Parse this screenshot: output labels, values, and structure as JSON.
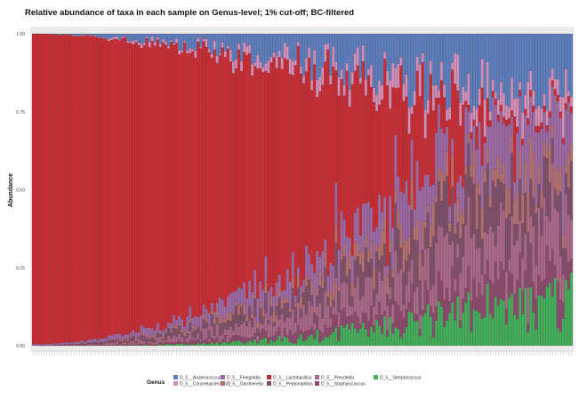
{
  "chart_data": {
    "type": "bar",
    "stacked": true,
    "title": "Relative abundance of taxa in each sample on Genus-level; 1% cut-off;  BC-filtered",
    "ylabel": "Abundance",
    "xlabel": "",
    "ylim": [
      0,
      1
    ],
    "yticks": [
      "0.00",
      "0.25",
      "0.50",
      "0.75",
      "1.00"
    ],
    "grid": true,
    "legend_title": "Genus",
    "legend_position": "bottom",
    "sample_count": 200,
    "series": [
      {
        "name": "D_5__Anaerococcus",
        "color": "#5a7fc0",
        "min": 0.0,
        "max": 0.3,
        "growth": 1.6
      },
      {
        "name": "D_5__Corynebacterium 1",
        "color": "#d08fb8",
        "min": 0.0,
        "max": 0.12,
        "growth": 1.5
      },
      {
        "name": "D_5__Finegoldia",
        "color": "#9a6aa6",
        "min": 0.005,
        "max": 0.25,
        "growth": 1.7
      },
      {
        "name": "D_5__Gardnerella",
        "color": "#b07070",
        "min": 0.0,
        "max": 0.15,
        "growth": 2.0
      },
      {
        "name": "D_5__Lactobacillus",
        "color": "#c72b33",
        "min": 0.0,
        "max": 1.0,
        "growth": 1.0
      },
      {
        "name": "D_5__Peptoniphilus",
        "color": "#7b5068",
        "min": 0.0,
        "max": 0.22,
        "growth": 1.8
      },
      {
        "name": "D_5__Prevotella",
        "color": "#a86888",
        "min": 0.0,
        "max": 0.25,
        "growth": 1.9
      },
      {
        "name": "D_5__Staphylococcus",
        "color": "#8a4a6e",
        "min": 0.0,
        "max": 0.15,
        "growth": 2.2
      },
      {
        "name": "D_5__Streptococcus",
        "color": "#3fb05a",
        "min": 0.0,
        "max": 0.25,
        "growth": 3.0
      }
    ]
  }
}
